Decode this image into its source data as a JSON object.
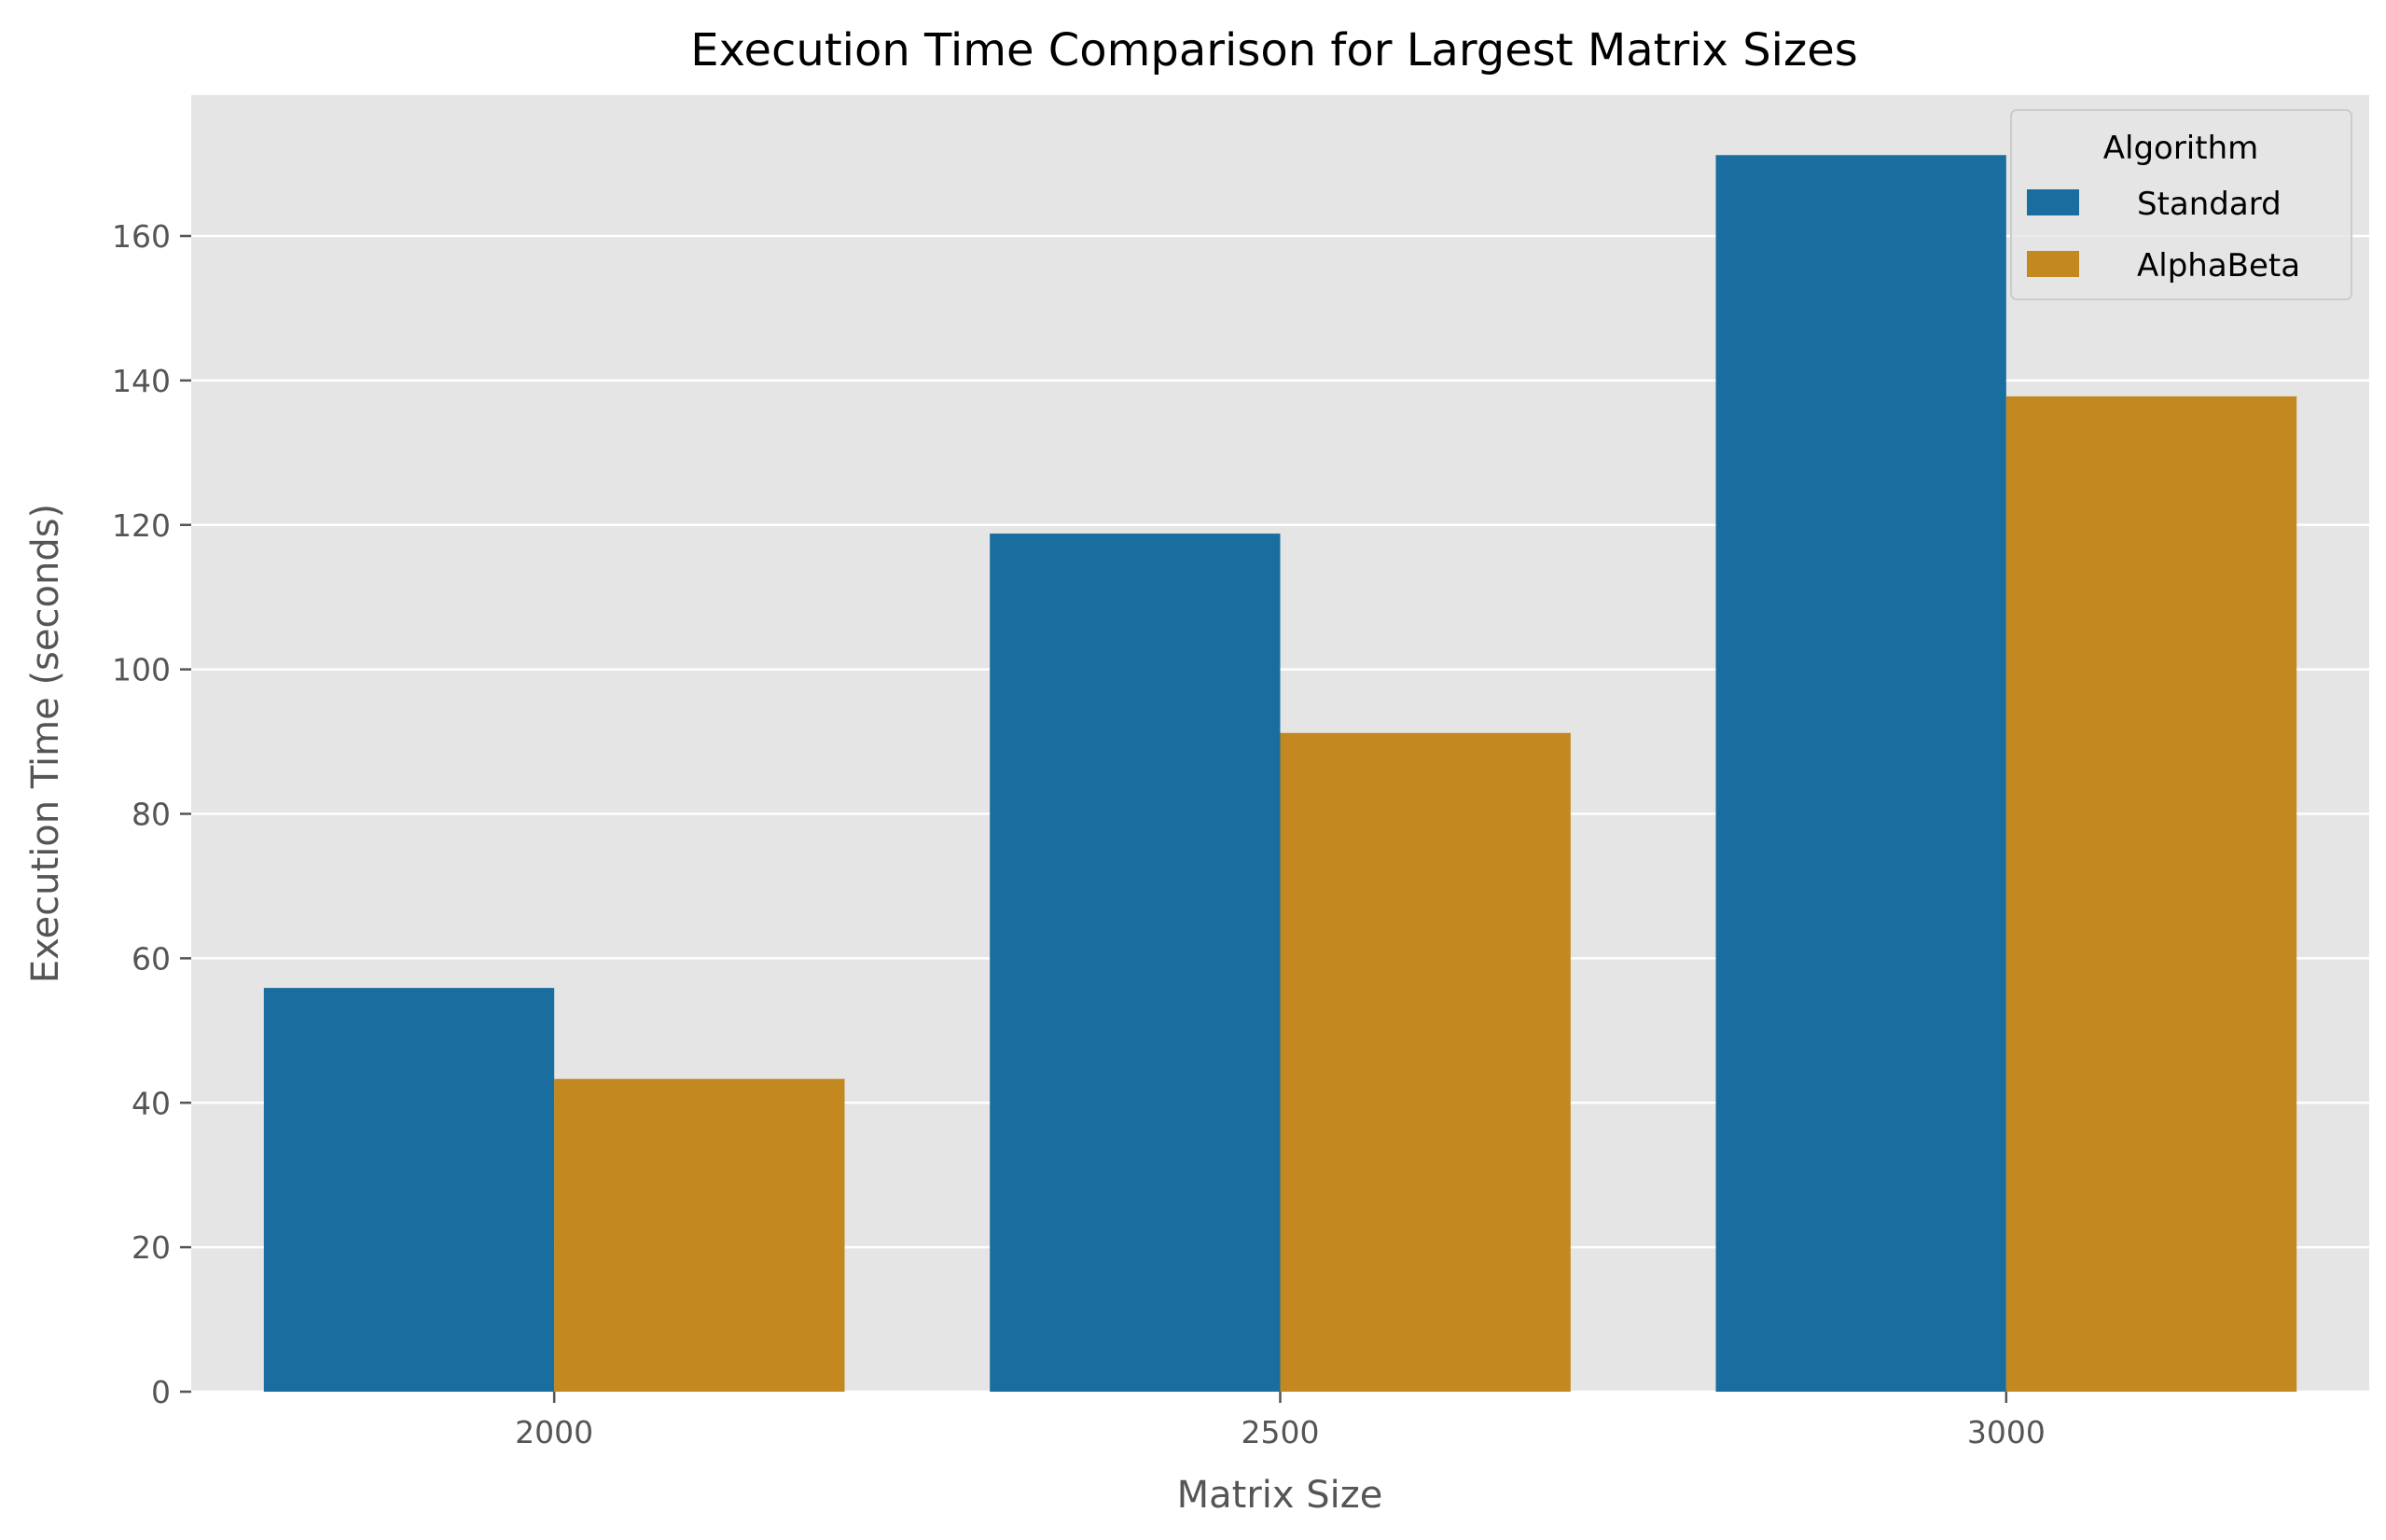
{
  "chart_data": {
    "type": "bar",
    "title": "Execution Time Comparison for Largest Matrix Sizes",
    "xlabel": "Matrix Size",
    "ylabel": "Execution Time (seconds)",
    "categories": [
      "2000",
      "2500",
      "3000"
    ],
    "ylim": [
      0,
      180
    ],
    "yticks": [
      0,
      20,
      40,
      60,
      80,
      100,
      120,
      140,
      160
    ],
    "grid": true,
    "legend": {
      "title": "Algorithm",
      "placement": "top-right"
    },
    "series": [
      {
        "name": "Standard",
        "color": "#1a6e9f",
        "values": [
          55.9,
          118.8,
          171.2
        ]
      },
      {
        "name": "AlphaBeta",
        "color": "#c38820",
        "values": [
          43.3,
          91.2,
          137.8
        ]
      }
    ]
  }
}
